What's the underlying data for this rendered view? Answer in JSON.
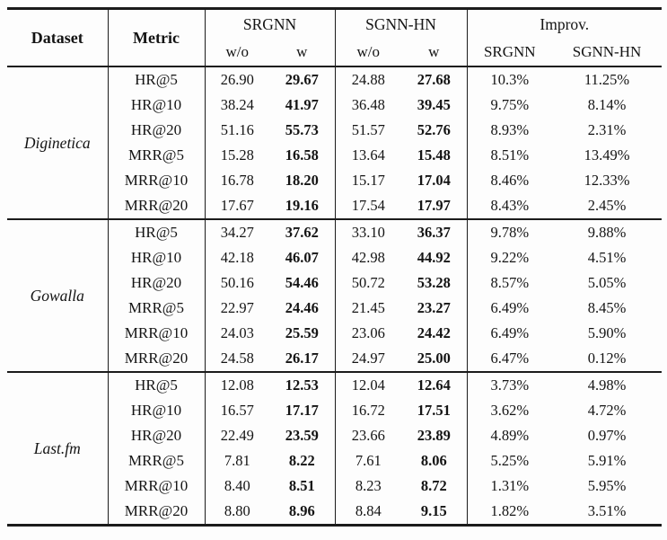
{
  "table": {
    "header": {
      "dataset": "Dataset",
      "metric": "Metric",
      "groups": [
        {
          "label": "SRGNN",
          "sub": [
            "w/o",
            "w"
          ]
        },
        {
          "label": "SGNN-HN",
          "sub": [
            "w/o",
            "w"
          ]
        },
        {
          "label": "Improv.",
          "sub": [
            "SRGNN",
            "SGNN-HN"
          ]
        }
      ]
    },
    "blocks": [
      {
        "dataset": "Diginetica",
        "rows": [
          [
            "HR@5",
            "26.90",
            "29.67",
            "24.88",
            "27.68",
            "10.3%",
            "11.25%"
          ],
          [
            "HR@10",
            "38.24",
            "41.97",
            "36.48",
            "39.45",
            "9.75%",
            "8.14%"
          ],
          [
            "HR@20",
            "51.16",
            "55.73",
            "51.57",
            "52.76",
            "8.93%",
            "2.31%"
          ],
          [
            "MRR@5",
            "15.28",
            "16.58",
            "13.64",
            "15.48",
            "8.51%",
            "13.49%"
          ],
          [
            "MRR@10",
            "16.78",
            "18.20",
            "15.17",
            "17.04",
            "8.46%",
            "12.33%"
          ],
          [
            "MRR@20",
            "17.67",
            "19.16",
            "17.54",
            "17.97",
            "8.43%",
            "2.45%"
          ]
        ]
      },
      {
        "dataset": "Gowalla",
        "rows": [
          [
            "HR@5",
            "34.27",
            "37.62",
            "33.10",
            "36.37",
            "9.78%",
            "9.88%"
          ],
          [
            "HR@10",
            "42.18",
            "46.07",
            "42.98",
            "44.92",
            "9.22%",
            "4.51%"
          ],
          [
            "HR@20",
            "50.16",
            "54.46",
            "50.72",
            "53.28",
            "8.57%",
            "5.05%"
          ],
          [
            "MRR@5",
            "22.97",
            "24.46",
            "21.45",
            "23.27",
            "6.49%",
            "8.45%"
          ],
          [
            "MRR@10",
            "24.03",
            "25.59",
            "23.06",
            "24.42",
            "6.49%",
            "5.90%"
          ],
          [
            "MRR@20",
            "24.58",
            "26.17",
            "24.97",
            "25.00",
            "6.47%",
            "0.12%"
          ]
        ]
      },
      {
        "dataset": "Last.fm",
        "rows": [
          [
            "HR@5",
            "12.08",
            "12.53",
            "12.04",
            "12.64",
            "3.73%",
            "4.98%"
          ],
          [
            "HR@10",
            "16.57",
            "17.17",
            "16.72",
            "17.51",
            "3.62%",
            "4.72%"
          ],
          [
            "HR@20",
            "22.49",
            "23.59",
            "23.66",
            "23.89",
            "4.89%",
            "0.97%"
          ],
          [
            "MRR@5",
            "7.81",
            "8.22",
            "7.61",
            "8.06",
            "5.25%",
            "5.91%"
          ],
          [
            "MRR@10",
            "8.40",
            "8.51",
            "8.23",
            "8.72",
            "1.31%",
            "5.95%"
          ],
          [
            "MRR@20",
            "8.80",
            "8.96",
            "8.84",
            "9.15",
            "1.82%",
            "3.51%"
          ]
        ]
      }
    ]
  }
}
